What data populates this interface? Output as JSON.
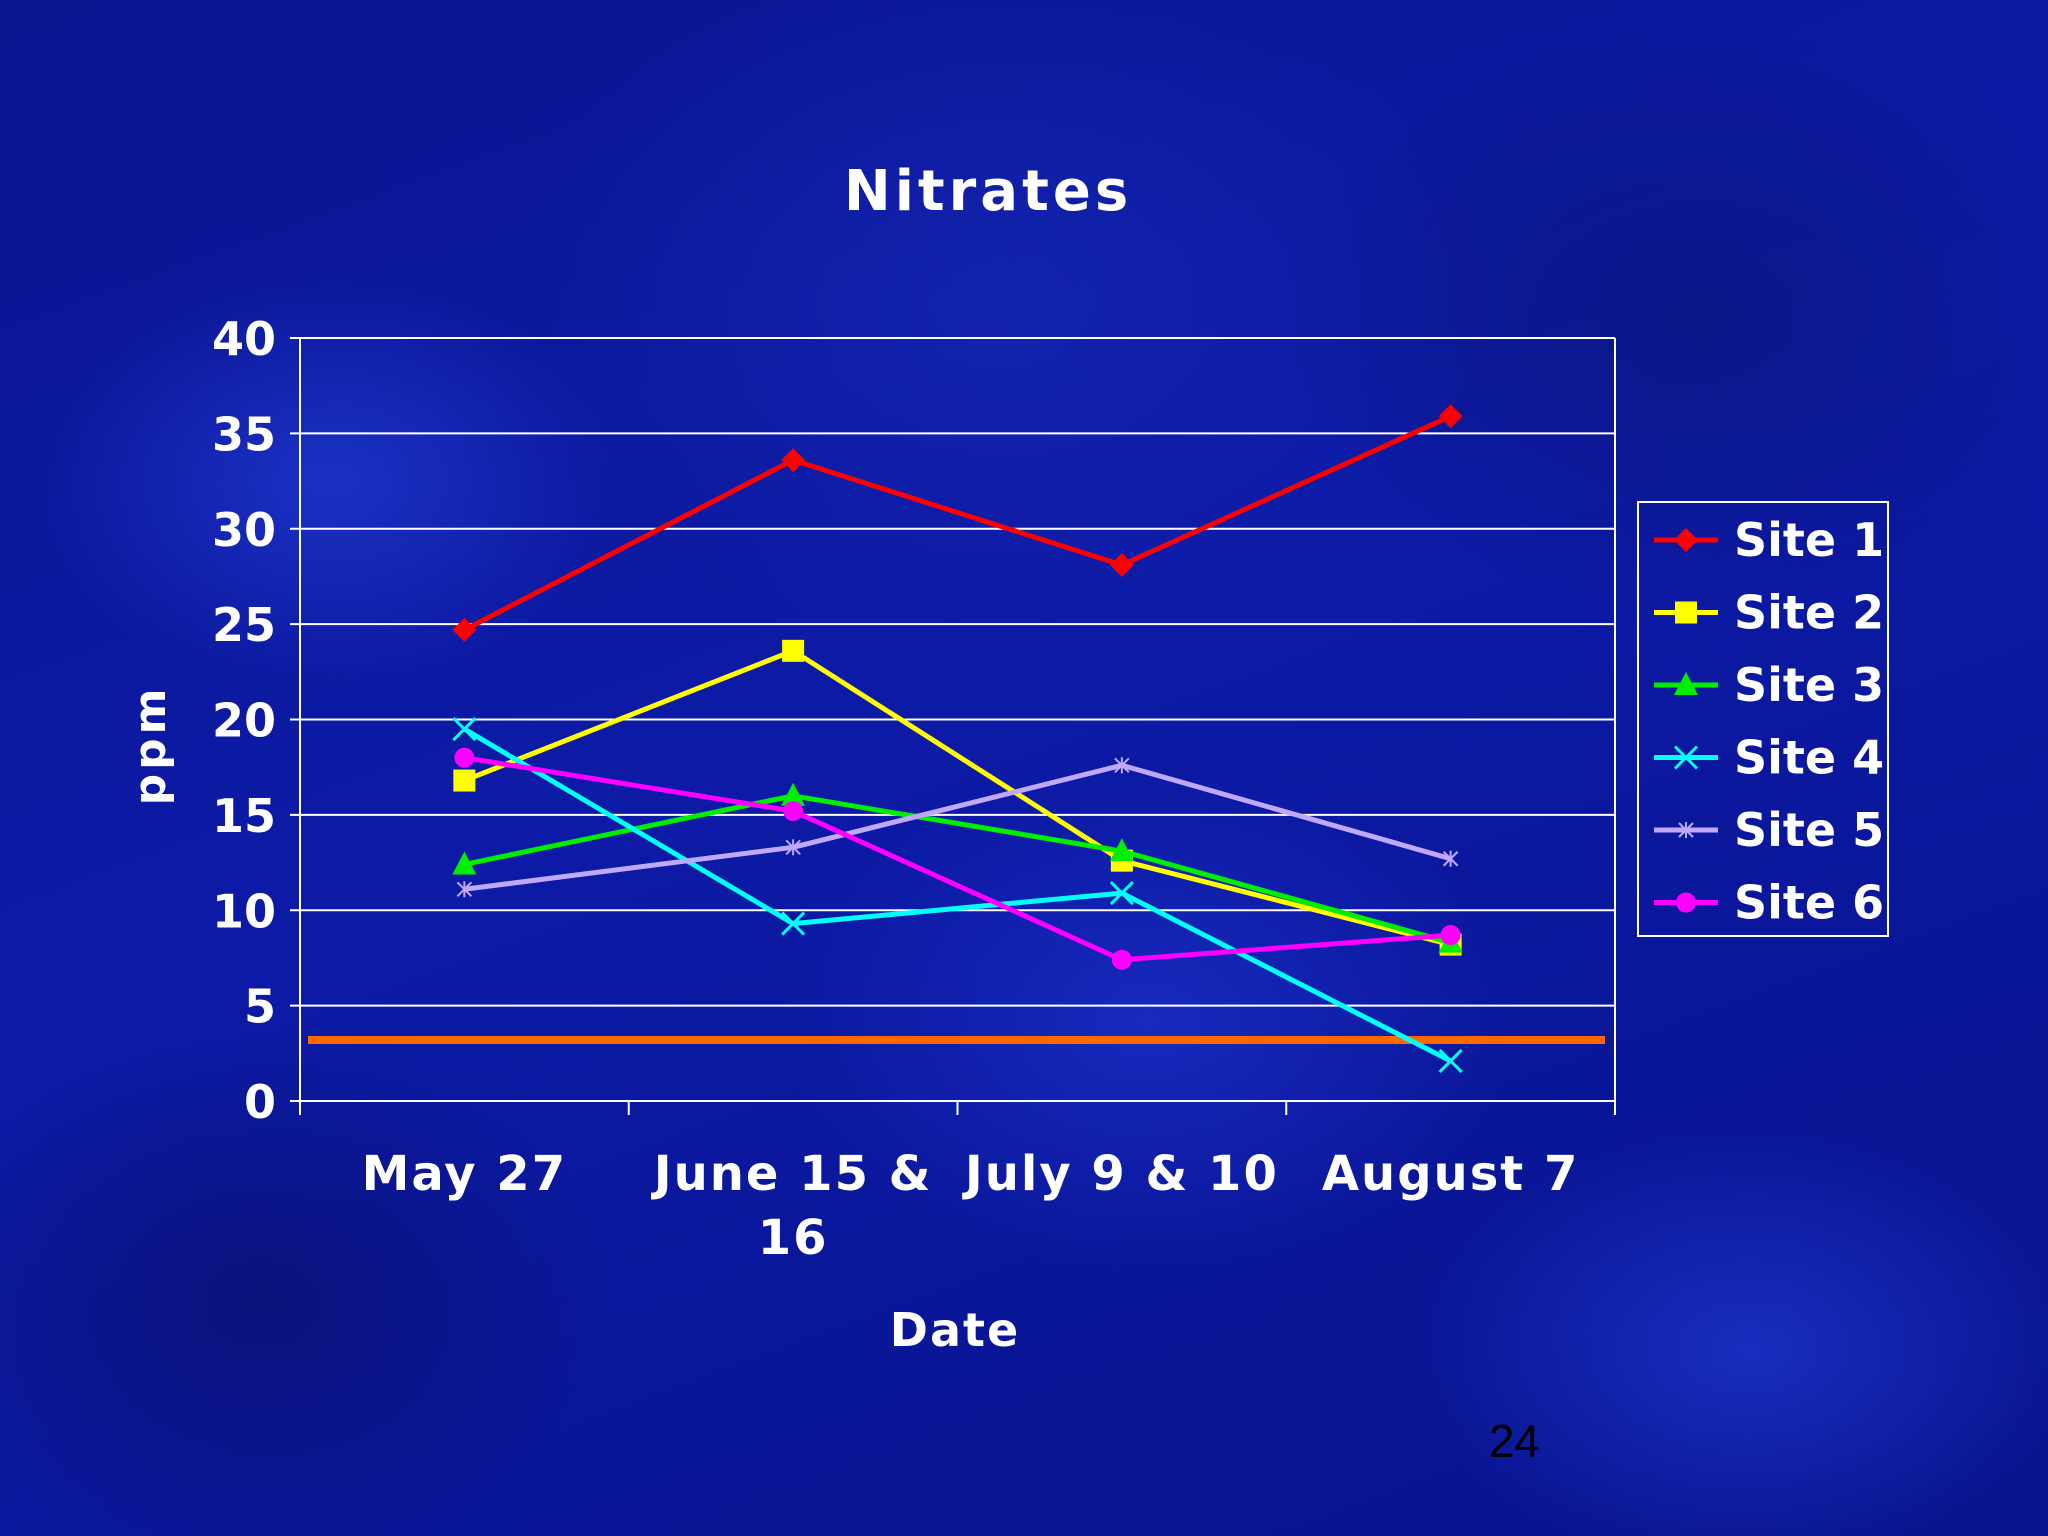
{
  "slide": {
    "page_number": "24"
  },
  "chart_data": {
    "type": "line",
    "title": "Nitrates",
    "xlabel": "Date",
    "ylabel": "ppm",
    "categories": [
      [
        "May 27"
      ],
      [
        "June 15 &",
        "16"
      ],
      [
        "July 9 & 10"
      ],
      [
        "August 7"
      ]
    ],
    "ylim": [
      0,
      40
    ],
    "ytick_step": 5,
    "grid": true,
    "legend_position": "right",
    "series": [
      {
        "name": "Site 1",
        "color": "#ff0000",
        "marker": "diamond",
        "values": [
          24.7,
          33.6,
          28.1,
          35.9
        ]
      },
      {
        "name": "Site 2",
        "color": "#ffff00",
        "marker": "square",
        "values": [
          16.8,
          23.6,
          12.6,
          8.2
        ]
      },
      {
        "name": "Site 3",
        "color": "#00ee00",
        "marker": "triangle",
        "values": [
          12.4,
          16.0,
          13.1,
          8.3
        ]
      },
      {
        "name": "Site 4",
        "color": "#00ffff",
        "marker": "x",
        "values": [
          19.5,
          9.3,
          10.9,
          2.1
        ]
      },
      {
        "name": "Site 5",
        "color": "#c0a8ff",
        "marker": "star",
        "values": [
          11.1,
          13.3,
          17.6,
          12.7
        ]
      },
      {
        "name": "Site 6",
        "color": "#ff00ff",
        "marker": "circle",
        "values": [
          18.0,
          15.2,
          7.4,
          8.7
        ]
      }
    ],
    "reference_line": {
      "value": 3.2,
      "color": "#ff6a00"
    }
  }
}
